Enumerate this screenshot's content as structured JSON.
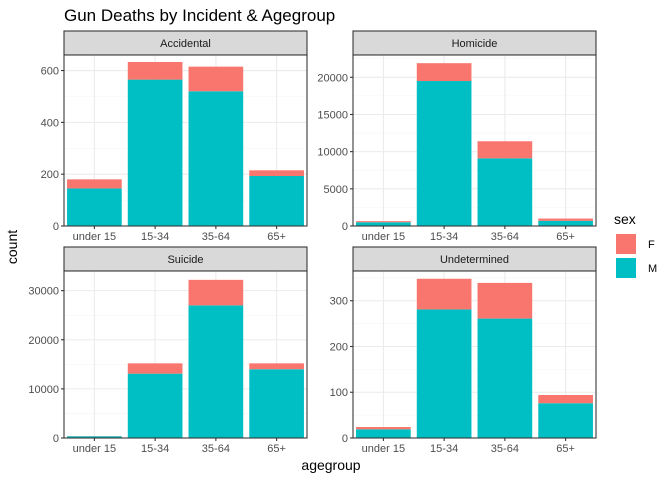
{
  "chart_data": {
    "type": "bar",
    "stacked": true,
    "title": "Gun Deaths by Incident & Agegroup",
    "xlabel": "agegroup",
    "ylabel": "count",
    "categories": [
      "under 15",
      "15-34",
      "35-64",
      "65+"
    ],
    "legend": {
      "title": "sex",
      "position": "right",
      "items": [
        {
          "label": "F",
          "color": "#F8766D"
        },
        {
          "label": "M",
          "color": "#00BFC4"
        }
      ]
    },
    "grid": true,
    "facets": [
      {
        "name": "Accidental",
        "ylim": [
          0,
          660
        ],
        "yticks": [
          0,
          200,
          400,
          600
        ],
        "series": [
          {
            "name": "F",
            "values": [
              35,
              68,
              95,
              22
            ]
          },
          {
            "name": "M",
            "values": [
              145,
              565,
              520,
              193
            ]
          }
        ]
      },
      {
        "name": "Homicide",
        "ylim": [
          0,
          23000
        ],
        "yticks": [
          0,
          5000,
          10000,
          15000,
          20000
        ],
        "series": [
          {
            "name": "F",
            "values": [
              150,
              2400,
              2300,
              300
            ]
          },
          {
            "name": "M",
            "values": [
              500,
              19500,
              9100,
              700
            ]
          }
        ]
      },
      {
        "name": "Suicide",
        "ylim": [
          0,
          34000
        ],
        "yticks": [
          0,
          10000,
          20000,
          30000
        ],
        "series": [
          {
            "name": "F",
            "values": [
              30,
              2100,
              5200,
              1200
            ]
          },
          {
            "name": "M",
            "values": [
              350,
              13100,
              27000,
              14000
            ]
          }
        ]
      },
      {
        "name": "Undetermined",
        "ylim": [
          0,
          365
        ],
        "yticks": [
          0,
          100,
          200,
          300
        ],
        "series": [
          {
            "name": "F",
            "values": [
              5,
              67,
              78,
              18
            ]
          },
          {
            "name": "M",
            "values": [
              19,
              281,
              261,
              76
            ]
          }
        ]
      }
    ]
  }
}
